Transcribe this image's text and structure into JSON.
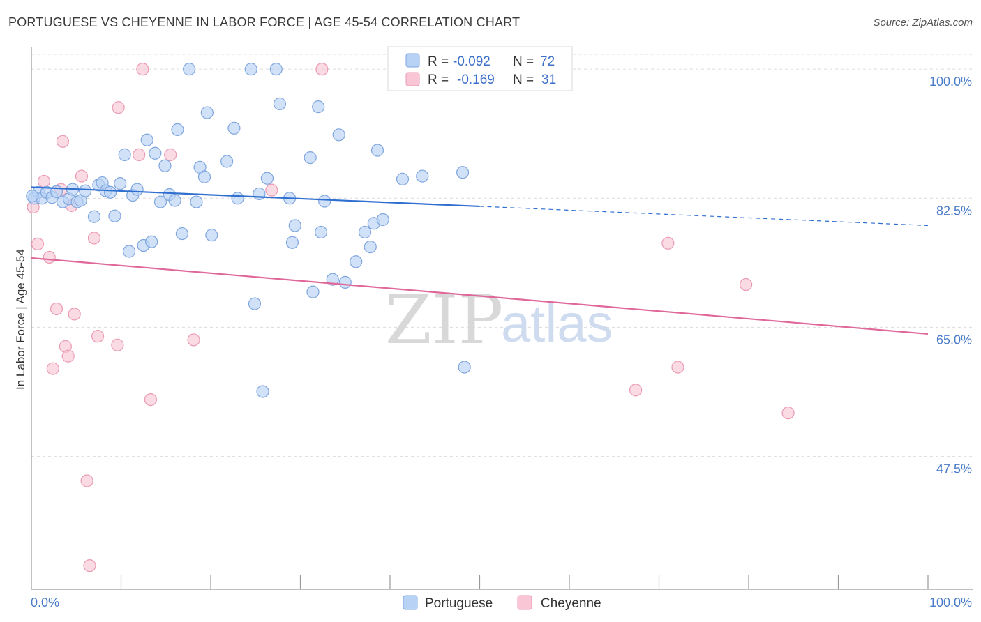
{
  "title": "PORTUGUESE VS CHEYENNE IN LABOR FORCE | AGE 45-54 CORRELATION CHART",
  "source": "Source: ZipAtlas.com",
  "watermark": {
    "zip": "ZIP",
    "atlas": "atlas"
  },
  "colors": {
    "blue_fill": "#b8d2f5",
    "blue_stroke": "#7fa6df",
    "blue_line": "#2f6fd0",
    "pink_fill": "#f8c6d4",
    "pink_stroke": "#eb9ab2",
    "pink_line": "#e0679a",
    "grid": "#dcdcdc",
    "axis_text": "#4a7cc9"
  },
  "legend": {
    "rows": [
      {
        "r_label": "R =",
        "r_value": "-0.092",
        "n_label": "N =",
        "n_value": "72"
      },
      {
        "r_label": "R =",
        "r_value": "-0.169",
        "n_label": "N =",
        "n_value": "31"
      }
    ]
  },
  "chart_data": {
    "type": "scatter",
    "title": "PORTUGUESE VS CHEYENNE IN LABOR FORCE | AGE 45-54 CORRELATION CHART",
    "xlabel": "",
    "ylabel": "In Labor Force | Age 45-54",
    "xlim": [
      0,
      100
    ],
    "ylim": [
      29.5,
      102
    ],
    "x_tick_labels": [
      "0.0%",
      "100.0%"
    ],
    "y_ticks": [
      100,
      82.5,
      65,
      47.5
    ],
    "y_tick_labels": [
      "100.0%",
      "82.5%",
      "65.0%",
      "47.5%"
    ],
    "legend_position": "top-center",
    "series": [
      {
        "name": "Portuguese",
        "r": -0.092,
        "n": 72,
        "trend": {
          "x0": 0,
          "y0": 84.0,
          "x1": 50,
          "y1": 81.4,
          "dash_to_x": 100,
          "dash_to_y": 78.8
        },
        "points": [
          [
            0.3,
            82.5
          ],
          [
            0.8,
            83.3
          ],
          [
            1.2,
            82.5
          ],
          [
            1.7,
            83.3
          ],
          [
            2.3,
            82.6
          ],
          [
            2.8,
            83.4
          ],
          [
            3.5,
            82.0
          ],
          [
            4.2,
            82.4
          ],
          [
            4.6,
            83.7
          ],
          [
            5.1,
            82.0
          ],
          [
            5.5,
            82.2
          ],
          [
            6.0,
            83.5
          ],
          [
            7.0,
            80.0
          ],
          [
            7.5,
            84.3
          ],
          [
            7.9,
            84.6
          ],
          [
            8.3,
            83.5
          ],
          [
            8.8,
            83.3
          ],
          [
            9.3,
            80.1
          ],
          [
            9.9,
            84.5
          ],
          [
            10.4,
            88.4
          ],
          [
            10.9,
            75.3
          ],
          [
            11.3,
            82.9
          ],
          [
            11.8,
            83.7
          ],
          [
            12.5,
            76.1
          ],
          [
            12.9,
            90.4
          ],
          [
            13.4,
            76.6
          ],
          [
            13.8,
            88.6
          ],
          [
            14.4,
            82.0
          ],
          [
            14.9,
            86.9
          ],
          [
            15.4,
            83.0
          ],
          [
            16.0,
            82.2
          ],
          [
            16.3,
            91.8
          ],
          [
            16.8,
            77.7
          ],
          [
            17.6,
            100
          ],
          [
            18.4,
            82.0
          ],
          [
            18.8,
            86.7
          ],
          [
            19.3,
            85.4
          ],
          [
            19.6,
            94.1
          ],
          [
            20.1,
            77.5
          ],
          [
            21.8,
            87.5
          ],
          [
            22.6,
            92.0
          ],
          [
            23.0,
            82.5
          ],
          [
            24.5,
            100
          ],
          [
            24.9,
            68.2
          ],
          [
            25.4,
            83.1
          ],
          [
            25.8,
            56.3
          ],
          [
            26.3,
            85.2
          ],
          [
            27.3,
            100
          ],
          [
            27.7,
            95.3
          ],
          [
            28.8,
            82.5
          ],
          [
            29.1,
            76.5
          ],
          [
            29.4,
            78.8
          ],
          [
            31.1,
            88.0
          ],
          [
            31.4,
            69.8
          ],
          [
            32.0,
            94.9
          ],
          [
            32.3,
            77.9
          ],
          [
            32.7,
            82.1
          ],
          [
            33.6,
            71.5
          ],
          [
            34.3,
            91.1
          ],
          [
            35.0,
            71.1
          ],
          [
            36.2,
            73.9
          ],
          [
            37.2,
            77.9
          ],
          [
            37.8,
            75.9
          ],
          [
            38.2,
            79.1
          ],
          [
            38.6,
            89.0
          ],
          [
            39.2,
            79.6
          ],
          [
            41.4,
            85.1
          ],
          [
            43.6,
            85.5
          ],
          [
            45.6,
            100
          ],
          [
            48.1,
            86.0
          ],
          [
            48.3,
            59.6
          ],
          [
            0.1,
            82.8
          ]
        ]
      },
      {
        "name": "Cheyenne",
        "r": -0.169,
        "n": 31,
        "trend": {
          "x0": 0,
          "y0": 74.4,
          "x1": 100,
          "y1": 64.1
        },
        "points": [
          [
            0.2,
            81.3
          ],
          [
            0.7,
            76.3
          ],
          [
            1.4,
            84.8
          ],
          [
            2.0,
            74.5
          ],
          [
            2.4,
            59.4
          ],
          [
            2.8,
            67.5
          ],
          [
            3.3,
            83.7
          ],
          [
            3.5,
            90.2
          ],
          [
            3.8,
            62.4
          ],
          [
            4.1,
            61.1
          ],
          [
            4.5,
            81.5
          ],
          [
            4.8,
            66.8
          ],
          [
            5.6,
            85.5
          ],
          [
            6.2,
            44.2
          ],
          [
            6.5,
            32.7
          ],
          [
            7.0,
            77.1
          ],
          [
            7.4,
            63.8
          ],
          [
            9.6,
            62.6
          ],
          [
            9.7,
            94.8
          ],
          [
            12.0,
            88.4
          ],
          [
            12.4,
            100
          ],
          [
            13.3,
            55.2
          ],
          [
            15.5,
            88.4
          ],
          [
            18.1,
            63.3
          ],
          [
            26.8,
            83.6
          ],
          [
            32.4,
            100
          ],
          [
            67.4,
            56.5
          ],
          [
            71.0,
            76.4
          ],
          [
            72.1,
            59.6
          ],
          [
            79.7,
            70.8
          ],
          [
            84.4,
            53.4
          ]
        ]
      }
    ]
  }
}
